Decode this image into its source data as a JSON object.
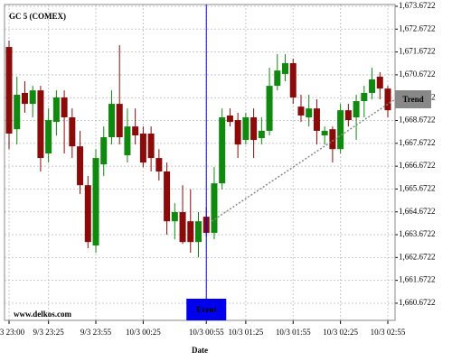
{
  "chart_data": {
    "type": "candlestick",
    "title": "GC 5 (COMEX)",
    "watermark": "www.delkos.com",
    "x_label": "Date",
    "categories": [
      "9/3 23:00",
      null,
      null,
      null,
      null,
      "9/3 23:25",
      null,
      null,
      null,
      null,
      null,
      "9/3 23:55",
      null,
      null,
      null,
      null,
      null,
      "10/3 00:25",
      null,
      null,
      null,
      null,
      null,
      null,
      null,
      "10/3 00:55",
      null,
      null,
      null,
      null,
      "10/3 01:25",
      null,
      null,
      null,
      null,
      null,
      "10/3 01:55",
      null,
      null,
      null,
      null,
      null,
      "10/3 02:25",
      null,
      null,
      null,
      null,
      null,
      "10/3 02:55"
    ],
    "open": [
      1671.89,
      1668.29,
      1669.88,
      1669.4,
      1669.99,
      1667.23,
      1668.61,
      1669.68,
      1668.81,
      1667.54,
      1665.84,
      1663.2,
      1666.75,
      1667.94,
      1669.4,
      1667.15,
      1668.41,
      1668.1,
      1668.1,
      1667.03,
      1666.44,
      1664.26,
      1664.66,
      1664.26,
      1663.35,
      1664.46,
      1663.75,
      1665.92,
      1668.89,
      1668.69,
      1667.82,
      1668.81,
      1667.9,
      1668.22,
      1670.19,
      1670.71,
      1671.18,
      1669.28,
      1668.81,
      1669.2,
      1668.02,
      1668.29,
      1667.42,
      1669.12,
      1668.81,
      1669.52,
      1669.88,
      1670.59,
      1670.07
    ],
    "high": [
      1672.17,
      1670.59,
      1670.39,
      1670.19,
      1670.19,
      1669.2,
      1669.99,
      1669.99,
      1669.2,
      1668.22,
      1666.24,
      1667.42,
      1668.41,
      1669.99,
      1671.97,
      1669.2,
      1669.2,
      1668.41,
      1668.41,
      1667.42,
      1666.83,
      1665.05,
      1665.84,
      1665.65,
      1664.66,
      1664.86,
      1666.63,
      1669.2,
      1669.2,
      1669.01,
      1669.01,
      1669.2,
      1668.81,
      1670.98,
      1671.58,
      1671.58,
      1671.38,
      1669.8,
      1669.8,
      1669.6,
      1668.41,
      1668.41,
      1669.4,
      1669.4,
      1669.8,
      1670.19,
      1670.98,
      1670.79,
      1670.19
    ],
    "low": [
      1667.42,
      1667.62,
      1669.01,
      1668.81,
      1666.44,
      1666.83,
      1668.02,
      1667.23,
      1667.03,
      1665.45,
      1663.08,
      1662.88,
      1666.24,
      1667.62,
      1667.62,
      1666.83,
      1667.62,
      1666.63,
      1666.44,
      1666.04,
      1663.67,
      1663.47,
      1663.27,
      1662.88,
      1662.68,
      1663.59,
      1663.47,
      1665.65,
      1668.41,
      1667.03,
      1667.62,
      1667.03,
      1667.62,
      1668.02,
      1669.99,
      1670.39,
      1669.4,
      1668.61,
      1668.41,
      1667.62,
      1667.62,
      1666.83,
      1667.23,
      1668.41,
      1667.82,
      1668.81,
      1669.6,
      1669.6,
      1668.81
    ],
    "close": [
      1668.1,
      1669.8,
      1669.4,
      1669.99,
      1667.03,
      1668.69,
      1669.68,
      1668.81,
      1667.54,
      1665.84,
      1663.35,
      1667.03,
      1667.94,
      1669.4,
      1667.94,
      1668.41,
      1668.02,
      1666.83,
      1667.03,
      1666.44,
      1664.26,
      1664.66,
      1663.35,
      1663.35,
      1664.26,
      1663.75,
      1665.92,
      1668.81,
      1668.61,
      1667.62,
      1668.81,
      1667.82,
      1668.22,
      1670.19,
      1670.86,
      1671.18,
      1669.68,
      1668.89,
      1669.2,
      1668.22,
      1668.22,
      1667.42,
      1669.12,
      1668.69,
      1669.52,
      1669.88,
      1670.47,
      1670.07,
      1669.12
    ],
    "up_color": "#0f8a0f",
    "down_color": "#8b0a0a",
    "ylim": [
      1659.92,
      1673.75
    ],
    "yticks": [
      {
        "value": 1660.6722,
        "label": "1,660.6722"
      },
      {
        "value": 1661.6722,
        "label": "1,661.6722"
      },
      {
        "value": 1662.6722,
        "label": "1,662.6722"
      },
      {
        "value": 1663.6722,
        "label": "1,663.6722"
      },
      {
        "value": 1664.6722,
        "label": "1,664.6722"
      },
      {
        "value": 1665.6722,
        "label": "1,665.6722"
      },
      {
        "value": 1666.6722,
        "label": "1,666.6722"
      },
      {
        "value": 1667.6722,
        "label": "1,667.6722"
      },
      {
        "value": 1668.6722,
        "label": "1,668.6722"
      },
      {
        "value": 1669.6722,
        "label": "1,669.6722"
      },
      {
        "value": 1670.6722,
        "label": "1,670.6722"
      },
      {
        "value": 1671.6722,
        "label": "1,671.6722"
      },
      {
        "value": 1672.6722,
        "label": "1,672.6722"
      },
      {
        "value": 1673.6722,
        "label": "1,673.6722"
      }
    ],
    "grid": true,
    "event": {
      "label": "Event",
      "at": "10/3 00:55",
      "color": "#0000ee"
    },
    "trend": {
      "label": "Trend",
      "values": [
        1664.26,
        1669.6
      ],
      "color": "#888888"
    }
  }
}
